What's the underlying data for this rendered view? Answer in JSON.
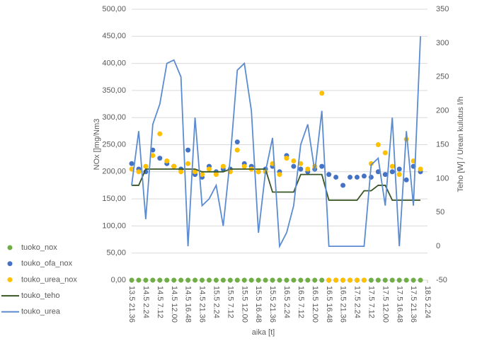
{
  "chart_data": {
    "type": "combo",
    "ylabel": "NOx []mg/Nm3",
    "y2label": "Teho [W] / Urean kulutus l/h",
    "xlabel": "aika [t]",
    "xlim": [
      13.9,
      18.1
    ],
    "xticks": [
      {
        "value": 13.9,
        "label": "13.5 21.36"
      },
      {
        "value": 14.1,
        "label": "14.5 2.24"
      },
      {
        "value": 14.3,
        "label": "14.5 7.12"
      },
      {
        "value": 14.5,
        "label": "14.5 12.00"
      },
      {
        "value": 14.7,
        "label": "14.5 16.48"
      },
      {
        "value": 14.9,
        "label": "14.5 21.36"
      },
      {
        "value": 15.1,
        "label": "15.5 2.24"
      },
      {
        "value": 15.3,
        "label": "15.5 7.12"
      },
      {
        "value": 15.5,
        "label": "15.5 12.00"
      },
      {
        "value": 15.7,
        "label": "15.5 16.48"
      },
      {
        "value": 15.9,
        "label": "15.5 21.36"
      },
      {
        "value": 16.1,
        "label": "16.5 2.24"
      },
      {
        "value": 16.3,
        "label": "16.5 7.12"
      },
      {
        "value": 16.5,
        "label": "16.5 12.00"
      },
      {
        "value": 16.7,
        "label": "16.5 16.48"
      },
      {
        "value": 16.9,
        "label": "16.5 21.36"
      },
      {
        "value": 17.1,
        "label": "17.5 2.24"
      },
      {
        "value": 17.3,
        "label": "17.5 7.12"
      },
      {
        "value": 17.5,
        "label": "17.5 12.00"
      },
      {
        "value": 17.7,
        "label": "17.5 16.48"
      },
      {
        "value": 17.9,
        "label": "17.5 21.36"
      },
      {
        "value": 18.1,
        "label": "18.5 2.24"
      }
    ],
    "ylim": [
      0,
      500
    ],
    "yticks": [
      {
        "value": 0,
        "label": "0,00"
      },
      {
        "value": 50,
        "label": "50,00"
      },
      {
        "value": 100,
        "label": "100,00"
      },
      {
        "value": 150,
        "label": "150,00"
      },
      {
        "value": 200,
        "label": "200,00"
      },
      {
        "value": 250,
        "label": "250,00"
      },
      {
        "value": 300,
        "label": "300,00"
      },
      {
        "value": 350,
        "label": "350,00"
      },
      {
        "value": 400,
        "label": "400,00"
      },
      {
        "value": 450,
        "label": "450,00"
      },
      {
        "value": 500,
        "label": "500,00"
      }
    ],
    "y2lim": [
      -50,
      350
    ],
    "y2ticks": [
      -50,
      0,
      50,
      100,
      150,
      200,
      250,
      300,
      350
    ],
    "grid": true,
    "legend": "left",
    "x": [
      13.9,
      14.0,
      14.1,
      14.2,
      14.3,
      14.4,
      14.5,
      14.6,
      14.7,
      14.8,
      14.9,
      15.0,
      15.1,
      15.2,
      15.3,
      15.4,
      15.5,
      15.6,
      15.7,
      15.8,
      15.9,
      16.0,
      16.1,
      16.2,
      16.3,
      16.4,
      16.5,
      16.6,
      16.7,
      16.8,
      16.9,
      17.0,
      17.1,
      17.2,
      17.3,
      17.4,
      17.5,
      17.6,
      17.7,
      17.8,
      17.9,
      18.0,
      18.1
    ],
    "series": [
      {
        "name": "tuoko_nox",
        "type": "scatter",
        "color": "#70ad47",
        "values": [
          0,
          0,
          0,
          0,
          0,
          0,
          0,
          0,
          0,
          0,
          0,
          0,
          0,
          0,
          0,
          0,
          0,
          0,
          0,
          0,
          0,
          0,
          0,
          0,
          0,
          0,
          0,
          0,
          0,
          0,
          0,
          0,
          0,
          0,
          0,
          0,
          0,
          0,
          0,
          0,
          0,
          0,
          null
        ]
      },
      {
        "name": "touko_ofa_nox",
        "type": "scatter",
        "color": "#4472c4",
        "values": [
          215,
          205,
          200,
          240,
          225,
          215,
          210,
          205,
          240,
          195,
          190,
          210,
          200,
          205,
          205,
          255,
          215,
          210,
          200,
          205,
          210,
          200,
          230,
          210,
          205,
          200,
          205,
          210,
          195,
          190,
          175,
          190,
          190,
          192,
          190,
          200,
          195,
          200,
          205,
          185,
          210,
          200,
          null
        ]
      },
      {
        "name": "touko_urea_nox",
        "type": "scatter",
        "color": "#ffc000",
        "values": [
          205,
          200,
          210,
          230,
          270,
          220,
          210,
          200,
          215,
          200,
          195,
          205,
          195,
          210,
          200,
          240,
          210,
          205,
          200,
          200,
          215,
          195,
          225,
          220,
          215,
          205,
          210,
          345,
          0,
          0,
          0,
          0,
          0,
          0,
          215,
          250,
          235,
          210,
          195,
          260,
          220,
          205,
          null
        ]
      },
      {
        "name": "touko_teho",
        "type": "line",
        "axis": "y2",
        "color": "#375623",
        "values": [
          90,
          90,
          114,
          114,
          114,
          114,
          114,
          114,
          114,
          114,
          110,
          110,
          110,
          110,
          114,
          114,
          114,
          114,
          114,
          114,
          80,
          80,
          80,
          80,
          106,
          106,
          106,
          106,
          68,
          68,
          68,
          68,
          68,
          82,
          82,
          90,
          90,
          68,
          68,
          68,
          68,
          68,
          null
        ]
      },
      {
        "name": "touko_urea",
        "type": "line",
        "axis": "y2",
        "color": "#5b8bd0",
        "values": [
          90,
          170,
          40,
          180,
          210,
          270,
          275,
          250,
          0,
          190,
          60,
          70,
          90,
          30,
          130,
          260,
          270,
          200,
          20,
          110,
          160,
          0,
          20,
          60,
          150,
          180,
          110,
          200,
          0,
          0,
          0,
          0,
          0,
          0,
          120,
          130,
          60,
          190,
          0,
          170,
          60,
          310,
          null
        ]
      }
    ]
  }
}
